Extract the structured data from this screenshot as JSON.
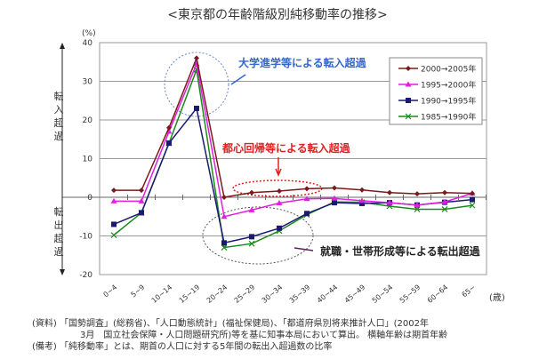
{
  "chart_data": {
    "type": "line",
    "title": "<東京都の年齢階級別純移動率の推移>",
    "ylabel_unit": "(%)",
    "xlabel_unit": "(歳)",
    "ylim": [
      -20,
      40
    ],
    "yticks": [
      40,
      30,
      20,
      10,
      0,
      -10,
      -20
    ],
    "grid": true,
    "legend_position": "top-right",
    "categories": [
      "0~4",
      "5~9",
      "10~14",
      "15~19",
      "20~24",
      "25~29",
      "30~34",
      "35~39",
      "40~44",
      "45~49",
      "50~54",
      "55~59",
      "60~64",
      "65~"
    ],
    "series": [
      {
        "name": "2000→2005年",
        "color": "#7b1a1a",
        "marker": "diamond",
        "values": [
          1.8,
          1.8,
          18,
          36,
          0,
          1.2,
          1.6,
          2.2,
          2.4,
          1.9,
          1.2,
          0.9,
          1.2,
          1.0
        ]
      },
      {
        "name": "1995→2000年",
        "color": "#e020e0",
        "marker": "triangle",
        "values": [
          -1,
          -1,
          17,
          34.5,
          -5,
          -3.3,
          -1.5,
          -0.4,
          -0.3,
          -0.9,
          -1.4,
          -2.0,
          -1.2,
          1.0
        ]
      },
      {
        "name": "1990→1995年",
        "color": "#1a1a70",
        "marker": "square",
        "values": [
          -7,
          -4,
          14,
          23,
          -11.8,
          -10.2,
          -8,
          -4.2,
          -1.4,
          -1.6,
          -1.4,
          -2.0,
          -1.3,
          -0.6
        ]
      },
      {
        "name": "1985→1990年",
        "color": "#1a8a1a",
        "marker": "x",
        "values": [
          -9.8,
          -4,
          14,
          33,
          -13,
          -12,
          -8.7,
          -4.5,
          -1.2,
          -1.3,
          -2.3,
          -3.1,
          -3.1,
          -2.1
        ]
      }
    ],
    "side_labels": {
      "top": "転入超過",
      "bottom": "転出超過"
    },
    "annotations": [
      {
        "text": "大学進学等による転入超過",
        "color": "#3366cc"
      },
      {
        "text": "都心回帰等による転入超過",
        "color": "#e02020"
      },
      {
        "text": "就職・世帯形成等による転出超過",
        "color": "#222222"
      }
    ]
  },
  "notes": [
    "(資料) 「国勢調査」(総務省)、「人口動態統計」(福祉保健局)、「都道府県別将来推計人口」(2002年",
    "3月　国立社会保障・人口問題研究所)等を基に知事本局において算出。 横軸年齢は期首年齢",
    "(備考) 「純移動率」とは、期首の人口に対する5年間の転出入超過数の比率"
  ]
}
